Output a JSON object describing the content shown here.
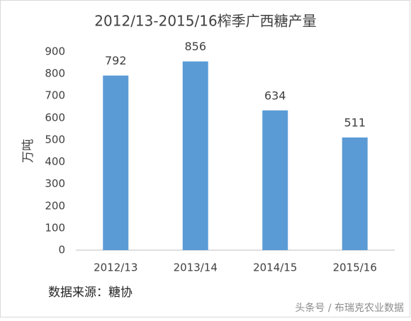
{
  "chart_data": {
    "type": "bar",
    "title": "2012/13-2015/16榨季广西糖产量",
    "y_label": "万吨",
    "categories": [
      "2012/13",
      "2013/14",
      "2014/15",
      "2015/16"
    ],
    "values": [
      792,
      856,
      634,
      511
    ],
    "color": "#5b9bd5",
    "ylim": [
      0,
      900
    ],
    "yticks": [
      0,
      100,
      200,
      300,
      400,
      500,
      600,
      700,
      800,
      900
    ],
    "grid": false,
    "source": "数据来源：糖协",
    "watermark": "头条号 / 布瑞克农业数据"
  }
}
